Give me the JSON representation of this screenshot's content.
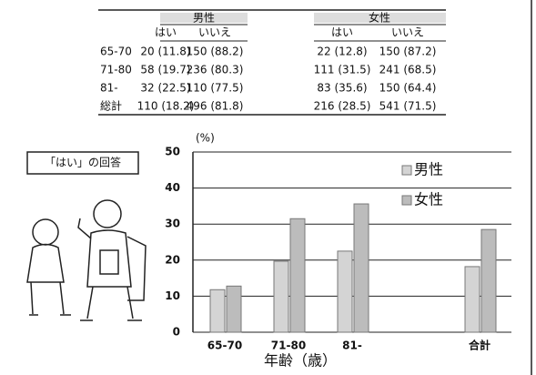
{
  "table": {
    "groups": [
      "男性",
      "女性"
    ],
    "sub": [
      "はい",
      "いいえ",
      "はい",
      "いいえ"
    ],
    "rows": [
      [
        "65-70",
        "20 (11.8)",
        "150 (88.2)",
        "22 (12.8)",
        "150 (87.2)"
      ],
      [
        "71-80",
        "58 (19.7)",
        "236 (80.3)",
        "111 (31.5)",
        "241 (68.5)"
      ],
      [
        "81-",
        "32 (22.5)",
        "110 (77.5)",
        "83 (35.6)",
        "150 (64.4)"
      ],
      [
        "総計",
        "110 (18.2)",
        "496 (81.8)",
        "216 (28.5)",
        "541 (71.5)"
      ]
    ]
  },
  "caption": "「はい」の回答",
  "chart_data": {
    "type": "bar",
    "y_unit": "(%)",
    "x_label": "年齢（歳）",
    "categories": [
      "65-70",
      "71-80",
      "81-",
      null,
      "合計"
    ],
    "series": [
      {
        "name": "男性",
        "color": "#d4d4d4",
        "values": [
          11.8,
          19.7,
          22.5,
          null,
          18.2
        ]
      },
      {
        "name": "女性",
        "color": "#bcbcbc",
        "values": [
          12.8,
          31.5,
          35.6,
          null,
          28.5
        ]
      }
    ],
    "ylim": [
      0,
      50
    ],
    "yticks": [
      0,
      10,
      20,
      30,
      40,
      50
    ],
    "grid": true
  }
}
